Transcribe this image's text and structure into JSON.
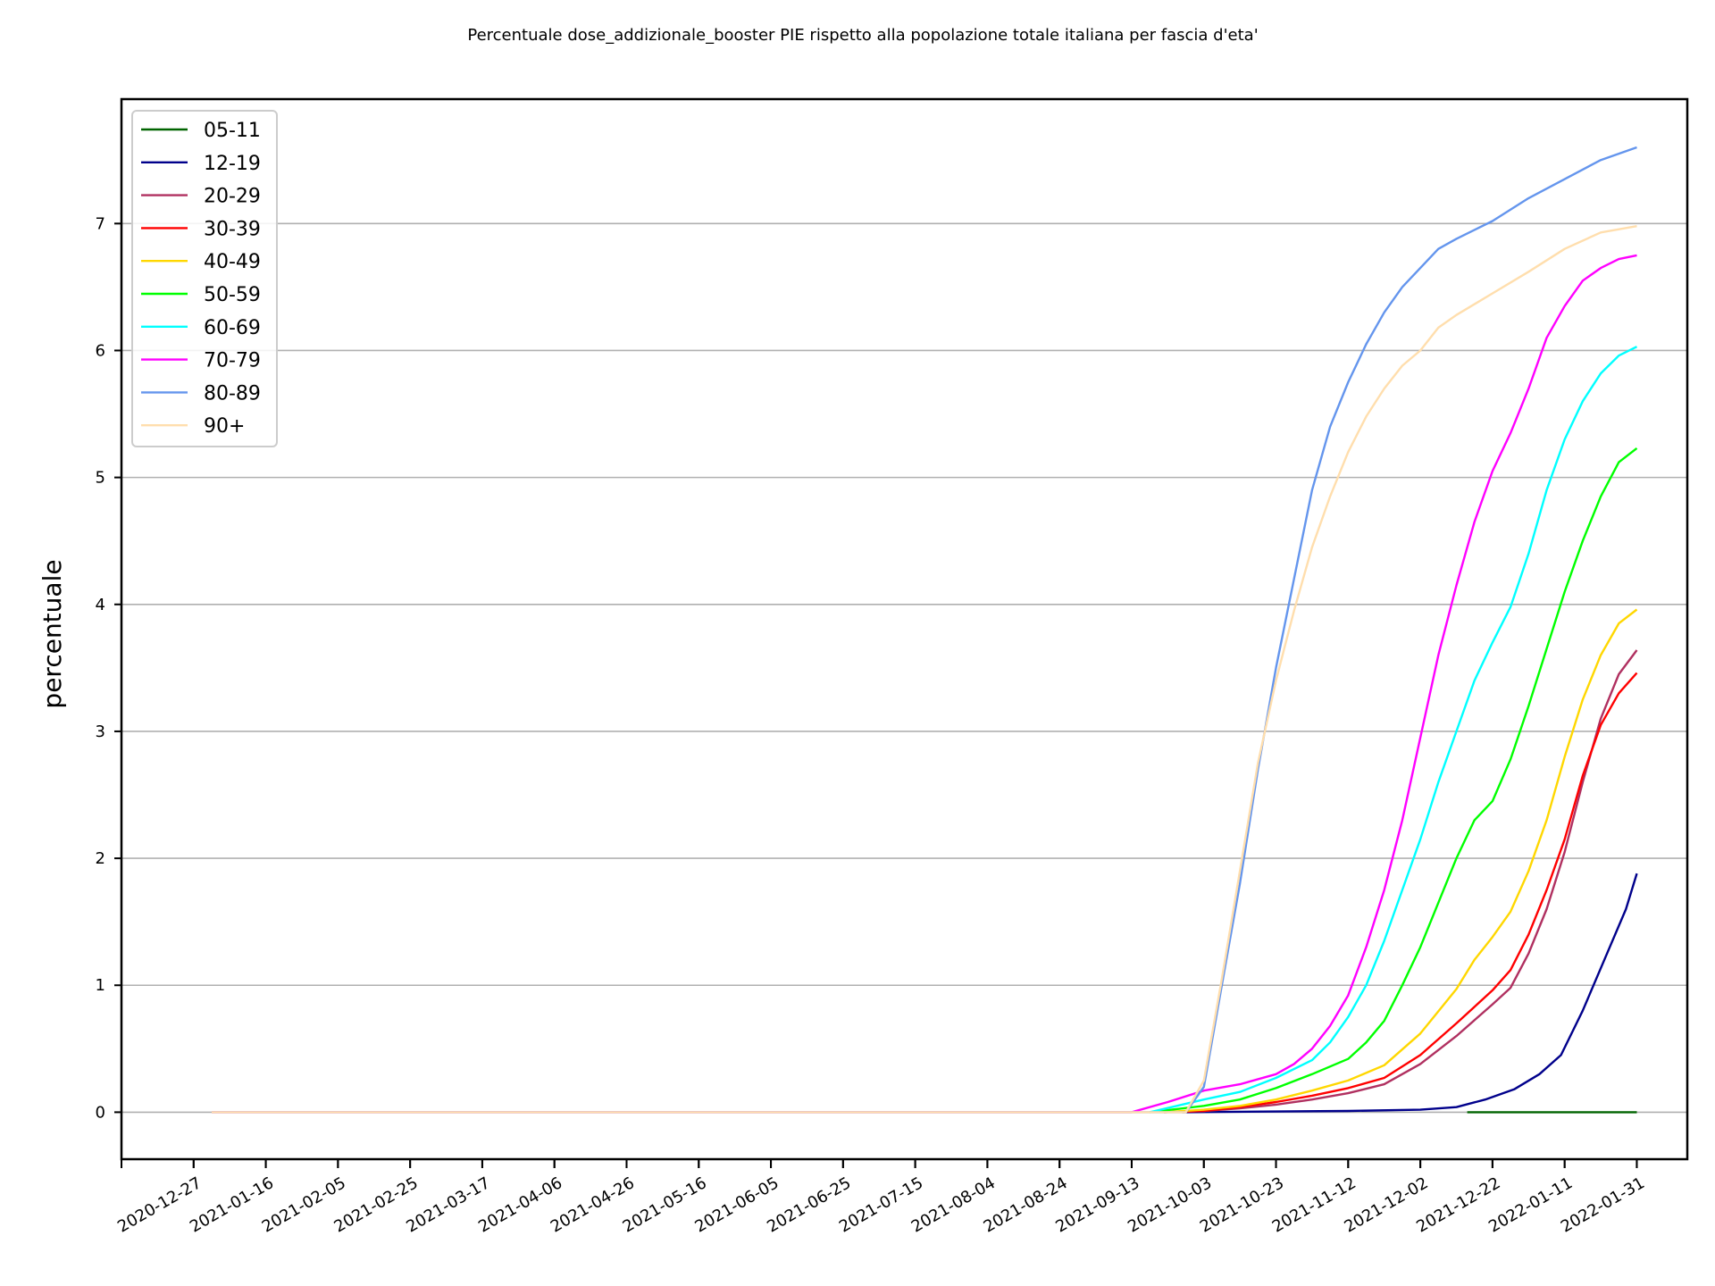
{
  "chart_data": {
    "type": "line",
    "title": "Percentuale dose_addizionale_booster PIE rispetto alla popolazione totale italiana per fascia d'eta'",
    "xlabel": "",
    "ylabel": "percentuale",
    "x_ticks": [
      "2020-12-27",
      "2021-01-16",
      "2021-02-05",
      "2021-02-25",
      "2021-03-17",
      "2021-04-06",
      "2021-04-26",
      "2021-05-16",
      "2021-06-05",
      "2021-06-25",
      "2021-07-15",
      "2021-08-04",
      "2021-08-24",
      "2021-09-13",
      "2021-10-03",
      "2021-10-23",
      "2021-11-12",
      "2021-12-02",
      "2021-12-22",
      "2022-01-11",
      "2022-01-31"
    ],
    "xlim": [
      "2020-12-07",
      "2022-02-14"
    ],
    "y_ticks": [
      0,
      1,
      2,
      3,
      4,
      5,
      6,
      7
    ],
    "ylim": [
      -0.37,
      7.98
    ],
    "grid": "y",
    "legend_position": "top-left",
    "series": [
      {
        "name": "05-11",
        "color": "#006400",
        "points": [
          [
            "2021-12-15",
            0
          ],
          [
            "2022-01-01",
            0
          ],
          [
            "2022-01-31",
            0
          ]
        ]
      },
      {
        "name": "12-19",
        "color": "#00008b",
        "points": [
          [
            "2021-09-27",
            0
          ],
          [
            "2021-11-12",
            0.01
          ],
          [
            "2021-12-02",
            0.02
          ],
          [
            "2021-12-12",
            0.04
          ],
          [
            "2021-12-20",
            0.1
          ],
          [
            "2021-12-28",
            0.18
          ],
          [
            "2022-01-04",
            0.3
          ],
          [
            "2022-01-10",
            0.45
          ],
          [
            "2022-01-16",
            0.8
          ],
          [
            "2022-01-22",
            1.2
          ],
          [
            "2022-01-28",
            1.6
          ],
          [
            "2022-01-31",
            1.88
          ]
        ]
      },
      {
        "name": "20-29",
        "color": "#b03060",
        "points": [
          [
            "2021-09-22",
            0
          ],
          [
            "2021-10-03",
            0.01
          ],
          [
            "2021-10-13",
            0.03
          ],
          [
            "2021-10-23",
            0.06
          ],
          [
            "2021-11-02",
            0.1
          ],
          [
            "2021-11-12",
            0.15
          ],
          [
            "2021-11-22",
            0.22
          ],
          [
            "2021-12-02",
            0.38
          ],
          [
            "2021-12-12",
            0.6
          ],
          [
            "2021-12-22",
            0.85
          ],
          [
            "2021-12-27",
            0.98
          ],
          [
            "2022-01-01",
            1.25
          ],
          [
            "2022-01-06",
            1.6
          ],
          [
            "2022-01-11",
            2.05
          ],
          [
            "2022-01-16",
            2.6
          ],
          [
            "2022-01-21",
            3.1
          ],
          [
            "2022-01-26",
            3.45
          ],
          [
            "2022-01-31",
            3.64
          ]
        ]
      },
      {
        "name": "30-39",
        "color": "#ff0000",
        "points": [
          [
            "2021-09-22",
            0
          ],
          [
            "2021-10-03",
            0.01
          ],
          [
            "2021-10-13",
            0.04
          ],
          [
            "2021-10-23",
            0.08
          ],
          [
            "2021-11-02",
            0.13
          ],
          [
            "2021-11-12",
            0.19
          ],
          [
            "2021-11-22",
            0.27
          ],
          [
            "2021-12-02",
            0.45
          ],
          [
            "2021-12-12",
            0.7
          ],
          [
            "2021-12-22",
            0.96
          ],
          [
            "2021-12-27",
            1.12
          ],
          [
            "2022-01-01",
            1.4
          ],
          [
            "2022-01-06",
            1.75
          ],
          [
            "2022-01-11",
            2.15
          ],
          [
            "2022-01-16",
            2.65
          ],
          [
            "2022-01-21",
            3.05
          ],
          [
            "2022-01-26",
            3.3
          ],
          [
            "2022-01-31",
            3.46
          ]
        ]
      },
      {
        "name": "40-49",
        "color": "#ffd700",
        "points": [
          [
            "2021-09-22",
            0
          ],
          [
            "2021-10-03",
            0.02
          ],
          [
            "2021-10-13",
            0.05
          ],
          [
            "2021-10-23",
            0.1
          ],
          [
            "2021-11-02",
            0.17
          ],
          [
            "2021-11-12",
            0.25
          ],
          [
            "2021-11-22",
            0.37
          ],
          [
            "2021-12-02",
            0.62
          ],
          [
            "2021-12-12",
            0.97
          ],
          [
            "2021-12-17",
            1.2
          ],
          [
            "2021-12-22",
            1.38
          ],
          [
            "2021-12-27",
            1.58
          ],
          [
            "2022-01-01",
            1.9
          ],
          [
            "2022-01-06",
            2.3
          ],
          [
            "2022-01-11",
            2.8
          ],
          [
            "2022-01-16",
            3.25
          ],
          [
            "2022-01-21",
            3.6
          ],
          [
            "2022-01-26",
            3.85
          ],
          [
            "2022-01-31",
            3.96
          ]
        ]
      },
      {
        "name": "50-59",
        "color": "#00ff00",
        "points": [
          [
            "2021-09-18",
            0
          ],
          [
            "2021-10-03",
            0.05
          ],
          [
            "2021-10-13",
            0.1
          ],
          [
            "2021-10-23",
            0.19
          ],
          [
            "2021-11-02",
            0.3
          ],
          [
            "2021-11-12",
            0.42
          ],
          [
            "2021-11-17",
            0.55
          ],
          [
            "2021-11-22",
            0.72
          ],
          [
            "2021-11-27",
            1.0
          ],
          [
            "2021-12-02",
            1.3
          ],
          [
            "2021-12-07",
            1.65
          ],
          [
            "2021-12-12",
            2.0
          ],
          [
            "2021-12-17",
            2.3
          ],
          [
            "2021-12-22",
            2.45
          ],
          [
            "2021-12-27",
            2.78
          ],
          [
            "2022-01-01",
            3.2
          ],
          [
            "2022-01-06",
            3.65
          ],
          [
            "2022-01-11",
            4.1
          ],
          [
            "2022-01-16",
            4.5
          ],
          [
            "2022-01-21",
            4.85
          ],
          [
            "2022-01-26",
            5.12
          ],
          [
            "2022-01-31",
            5.23
          ]
        ]
      },
      {
        "name": "60-69",
        "color": "#00ffff",
        "points": [
          [
            "2021-09-18",
            0
          ],
          [
            "2021-10-03",
            0.1
          ],
          [
            "2021-10-13",
            0.16
          ],
          [
            "2021-10-23",
            0.27
          ],
          [
            "2021-11-02",
            0.41
          ],
          [
            "2021-11-07",
            0.55
          ],
          [
            "2021-11-12",
            0.75
          ],
          [
            "2021-11-17",
            1.0
          ],
          [
            "2021-11-22",
            1.35
          ],
          [
            "2021-11-27",
            1.75
          ],
          [
            "2021-12-02",
            2.15
          ],
          [
            "2021-12-07",
            2.6
          ],
          [
            "2021-12-12",
            3.0
          ],
          [
            "2021-12-17",
            3.4
          ],
          [
            "2021-12-22",
            3.7
          ],
          [
            "2021-12-27",
            3.98
          ],
          [
            "2022-01-01",
            4.4
          ],
          [
            "2022-01-06",
            4.9
          ],
          [
            "2022-01-11",
            5.3
          ],
          [
            "2022-01-16",
            5.6
          ],
          [
            "2022-01-21",
            5.82
          ],
          [
            "2022-01-26",
            5.96
          ],
          [
            "2022-01-31",
            6.03
          ]
        ]
      },
      {
        "name": "70-79",
        "color": "#ff00ff",
        "points": [
          [
            "2021-01-01",
            0
          ],
          [
            "2021-09-13",
            0
          ],
          [
            "2021-09-23",
            0.08
          ],
          [
            "2021-10-03",
            0.17
          ],
          [
            "2021-10-13",
            0.22
          ],
          [
            "2021-10-23",
            0.3
          ],
          [
            "2021-10-28",
            0.38
          ],
          [
            "2021-11-02",
            0.5
          ],
          [
            "2021-11-07",
            0.68
          ],
          [
            "2021-11-12",
            0.92
          ],
          [
            "2021-11-17",
            1.3
          ],
          [
            "2021-11-22",
            1.75
          ],
          [
            "2021-11-27",
            2.3
          ],
          [
            "2021-12-02",
            2.95
          ],
          [
            "2021-12-07",
            3.6
          ],
          [
            "2021-12-12",
            4.15
          ],
          [
            "2021-12-17",
            4.65
          ],
          [
            "2021-12-22",
            5.05
          ],
          [
            "2021-12-27",
            5.35
          ],
          [
            "2022-01-01",
            5.7
          ],
          [
            "2022-01-06",
            6.1
          ],
          [
            "2022-01-11",
            6.35
          ],
          [
            "2022-01-16",
            6.55
          ],
          [
            "2022-01-21",
            6.65
          ],
          [
            "2022-01-26",
            6.72
          ],
          [
            "2022-01-31",
            6.75
          ]
        ]
      },
      {
        "name": "80-89",
        "color": "#6495ed",
        "points": [
          [
            "2021-01-01",
            0
          ],
          [
            "2021-09-28",
            0
          ],
          [
            "2021-10-03",
            0.2
          ],
          [
            "2021-10-08",
            1.0
          ],
          [
            "2021-10-13",
            1.8
          ],
          [
            "2021-10-18",
            2.7
          ],
          [
            "2021-10-23",
            3.5
          ],
          [
            "2021-10-28",
            4.2
          ],
          [
            "2021-11-02",
            4.9
          ],
          [
            "2021-11-07",
            5.4
          ],
          [
            "2021-11-12",
            5.75
          ],
          [
            "2021-11-17",
            6.05
          ],
          [
            "2021-11-22",
            6.3
          ],
          [
            "2021-11-27",
            6.5
          ],
          [
            "2021-12-02",
            6.65
          ],
          [
            "2021-12-07",
            6.8
          ],
          [
            "2021-12-12",
            6.88
          ],
          [
            "2021-12-22",
            7.02
          ],
          [
            "2022-01-01",
            7.2
          ],
          [
            "2022-01-11",
            7.35
          ],
          [
            "2022-01-21",
            7.5
          ],
          [
            "2022-01-31",
            7.6
          ]
        ]
      },
      {
        "name": "90+",
        "color": "#ffdead",
        "points": [
          [
            "2021-01-01",
            0
          ],
          [
            "2021-09-28",
            0
          ],
          [
            "2021-10-03",
            0.25
          ],
          [
            "2021-10-08",
            1.05
          ],
          [
            "2021-10-13",
            1.9
          ],
          [
            "2021-10-18",
            2.75
          ],
          [
            "2021-10-23",
            3.4
          ],
          [
            "2021-10-28",
            3.95
          ],
          [
            "2021-11-02",
            4.45
          ],
          [
            "2021-11-07",
            4.85
          ],
          [
            "2021-11-12",
            5.2
          ],
          [
            "2021-11-17",
            5.48
          ],
          [
            "2021-11-22",
            5.7
          ],
          [
            "2021-11-27",
            5.88
          ],
          [
            "2021-12-02",
            6.0
          ],
          [
            "2021-12-07",
            6.18
          ],
          [
            "2021-12-12",
            6.28
          ],
          [
            "2021-12-22",
            6.45
          ],
          [
            "2022-01-01",
            6.62
          ],
          [
            "2022-01-11",
            6.8
          ],
          [
            "2022-01-21",
            6.93
          ],
          [
            "2022-01-31",
            6.98
          ]
        ]
      }
    ]
  }
}
